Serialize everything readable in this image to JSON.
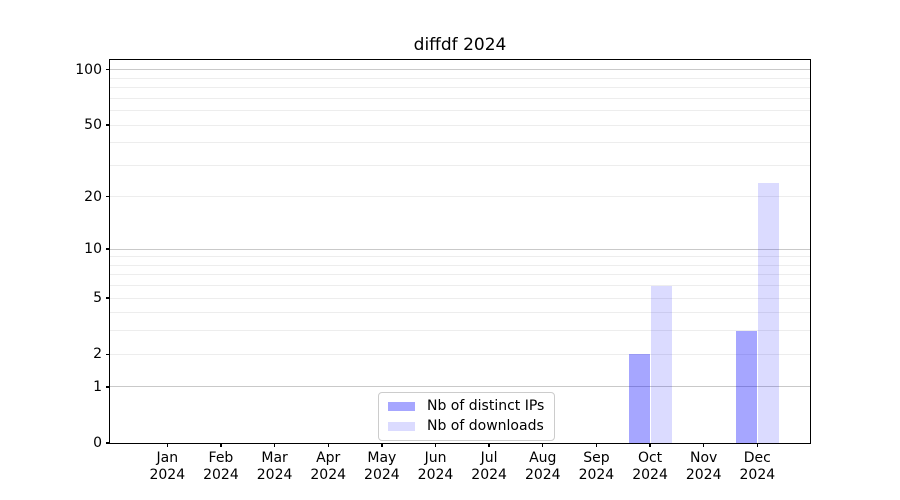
{
  "chart_data": {
    "type": "bar",
    "title": "diffdf 2024",
    "categories": [
      "Jan 2024",
      "Feb 2024",
      "Mar 2024",
      "Apr 2024",
      "May 2024",
      "Jun 2024",
      "Jul 2024",
      "Aug 2024",
      "Sep 2024",
      "Oct 2024",
      "Nov 2024",
      "Dec 2024"
    ],
    "series": [
      {
        "name": "Nb of distinct IPs",
        "color": "rgba(0,0,255,0.35)",
        "solid_color": "#a6a6ff",
        "values": [
          0,
          0,
          0,
          0,
          0,
          0,
          0,
          0,
          0,
          2,
          0,
          3
        ]
      },
      {
        "name": "Nb of downloads",
        "color": "rgba(0,0,255,0.14)",
        "solid_color": "#dbdbff",
        "values": [
          0,
          0,
          0,
          0,
          0,
          0,
          0,
          0,
          0,
          6,
          0,
          24
        ]
      }
    ],
    "yscale": "log1p",
    "ylim": [
      0,
      113
    ],
    "y_ticks": [
      0,
      1,
      2,
      5,
      10,
      20,
      50,
      100
    ],
    "grid": true,
    "grid_major_values": [
      1,
      10,
      100
    ],
    "grid_minor_values": [
      2,
      3,
      4,
      5,
      6,
      7,
      8,
      9,
      20,
      30,
      40,
      50,
      60,
      70,
      80,
      90
    ],
    "legend_position": "lower center"
  },
  "colors": {
    "major_grid": "#c9c9c9",
    "minor_grid": "#ededed",
    "spine": "#000000"
  }
}
